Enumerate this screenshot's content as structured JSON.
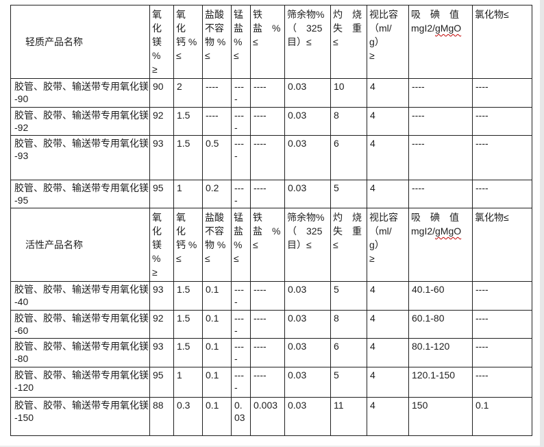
{
  "colors": {
    "table_border": "#1f1f1f",
    "text": "#1d1d1d",
    "spellcheck_underline": "#c00000",
    "page_edge": "#e7e7e7"
  },
  "table": {
    "sections": [
      {
        "title": "轻质产品名称",
        "headers": [
          {
            "text": "氧\n化\n镁\n%\n≥"
          },
          {
            "text": "氧\n化\n钙 %\n≤"
          },
          {
            "text": "盐酸\n不容\n物 %\n≤"
          },
          {
            "text": "锰\n盐\n%\n≤"
          },
          {
            "text": "铁\n盐　%\n≤"
          },
          {
            "text": "筛余物%\n（　325\n目）≤"
          },
          {
            "text": "灼　烧\n失　重\n≤"
          },
          {
            "text": "视比容\n（ml/g）\n≥"
          },
          {
            "line1": "吸　碘　值",
            "unit_prefix": "mgI2/",
            "unit_wavy": "gMgO"
          },
          {
            "text": "氯化物≤"
          }
        ],
        "rows": [
          {
            "name": "胶管、胶带、输送带专用氧化镁",
            "grade": "-90",
            "values": [
              "90",
              "2",
              "----",
              "----",
              "----",
              "0.03",
              "10",
              "4",
              "----",
              "----"
            ]
          },
          {
            "name": "胶管、胶带、输送带专用氧化镁",
            "grade": "-92",
            "values": [
              "92",
              "1.5",
              "----",
              "----",
              "----",
              "0.03",
              "8",
              "4",
              "----",
              "----"
            ]
          },
          {
            "name": "胶管、胶带、输送带专用氧化镁",
            "grade": "-93",
            "values": [
              "93",
              "1.5",
              "0.5",
              "----",
              "----",
              "0.03",
              "6",
              "4",
              "----",
              "----"
            ]
          },
          {
            "name": "胶管、胶带、输送带专用氧化镁",
            "grade": "-95",
            "values": [
              "95",
              "1",
              "0.2",
              "----",
              "----",
              "0.03",
              "5",
              "4",
              "----",
              "----"
            ]
          }
        ]
      },
      {
        "title": "活性产品名称",
        "headers": [
          {
            "text": "氧\n化\n镁\n%\n≥"
          },
          {
            "text": "氧\n化\n钙 %\n≤"
          },
          {
            "text": "盐酸\n不容\n物 %\n≤"
          },
          {
            "text": "锰\n盐\n%\n≤"
          },
          {
            "text": "铁\n盐　%\n≤"
          },
          {
            "text": "筛余物%\n（　325\n目）≤"
          },
          {
            "text": "灼　烧\n失　重\n≤"
          },
          {
            "text": "视比容\n（ml/g）\n≥"
          },
          {
            "line1": "吸　碘　值",
            "unit_prefix": "mgI2/",
            "unit_wavy": "gMgO"
          },
          {
            "text": "氯化物≤"
          }
        ],
        "rows": [
          {
            "name": "胶管、胶带、输送带专用氧化镁",
            "grade": "-40",
            "values": [
              "93",
              "1.5",
              "0.1",
              "----",
              "----",
              "0.03",
              "5",
              "4",
              "40.1-60",
              "----"
            ]
          },
          {
            "name": "胶管、胶带、输送带专用氧化镁",
            "grade": "-60",
            "values": [
              "92",
              "1.5",
              "0.1",
              "----",
              "----",
              "0.03",
              "8",
              "4",
              "60.1-80",
              "----"
            ]
          },
          {
            "name": "胶管、胶带、输送带专用氧化镁",
            "grade": "-80",
            "values": [
              "93",
              "1.5",
              "0.1",
              "----",
              "----",
              "0.03",
              "6",
              "4",
              "80.1-120",
              "----"
            ]
          },
          {
            "name": "胶管、胶带、输送带专用氧化镁",
            "grade": "-120",
            "values": [
              "95",
              "1",
              "0.1",
              "----",
              "----",
              "0.03",
              "5",
              "4",
              "120.1-150",
              "----"
            ]
          },
          {
            "name": "胶管、胶带、输送带专用氧化镁",
            "grade": "-150",
            "values": [
              "88",
              "0.3",
              "0.1",
              "0.03",
              "0.003",
              "0.03",
              "11",
              "4",
              "150",
              "0.1"
            ]
          }
        ]
      }
    ]
  }
}
